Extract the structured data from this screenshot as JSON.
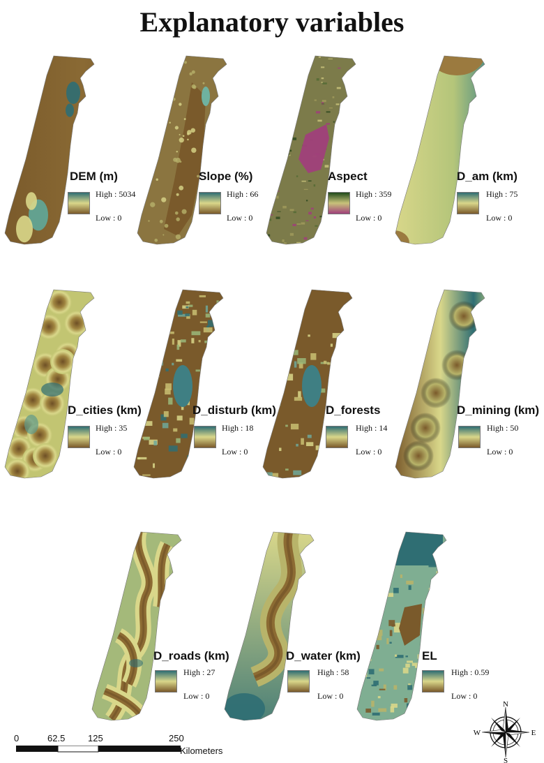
{
  "title": "Explanatory variables",
  "colors": {
    "ramp_high": "#2f6e73",
    "ramp_mid": "#d9d78a",
    "ramp_low": "#7a5a2b",
    "aspect_high": "#1f4a1a",
    "aspect_mid": "#c8c27a",
    "aspect_low": "#a0407a"
  },
  "panels": [
    {
      "id": "dem",
      "title": "DEM (m)",
      "high_label": "High : 5034",
      "low_label": "Low : 0",
      "style": "dem",
      "colormap": "ramp"
    },
    {
      "id": "slope",
      "title": "Slope (%)",
      "high_label": "High : 66",
      "low_label": "Low : 0",
      "style": "slope",
      "colormap": "ramp"
    },
    {
      "id": "aspect",
      "title": "Aspect",
      "high_label": "High : 359",
      "low_label": "Low : 0",
      "style": "aspect",
      "colormap": "aspect"
    },
    {
      "id": "d_am",
      "title": "D_am (km)",
      "high_label": "High : 75",
      "low_label": "Low : 0",
      "style": "dist",
      "colormap": "ramp"
    },
    {
      "id": "d_cities",
      "title": "D_cities (km)",
      "high_label": "High : 35",
      "low_label": "Low : 0",
      "style": "blobs",
      "colormap": "ramp"
    },
    {
      "id": "d_disturb",
      "title": "D_disturb (km)",
      "high_label": "High : 18",
      "low_label": "Low : 0",
      "style": "patchy",
      "colormap": "ramp"
    },
    {
      "id": "d_forests",
      "title": "D_forests",
      "high_label": "High : 14",
      "low_label": "Low : 0",
      "style": "patchy2",
      "colormap": "ramp"
    },
    {
      "id": "d_mining",
      "title": "D_mining (km)",
      "high_label": "High : 50",
      "low_label": "Low : 0",
      "style": "dist2",
      "colormap": "ramp"
    },
    {
      "id": "d_roads",
      "title": "D_roads (km)",
      "high_label": "High : 27",
      "low_label": "Low : 0",
      "style": "roads",
      "colormap": "ramp"
    },
    {
      "id": "d_water",
      "title": "D_water (km)",
      "high_label": "High : 58",
      "low_label": "Low : 0",
      "style": "water",
      "colormap": "ramp"
    },
    {
      "id": "el",
      "title": "EL",
      "high_label": "High : 0.59",
      "low_label": "Low : 0",
      "style": "el",
      "colormap": "ramp"
    }
  ],
  "scale_bar": {
    "ticks": [
      "0",
      "62.5",
      "125",
      "250"
    ],
    "unit": "Kilometers"
  },
  "north_arrow": {
    "n": "N",
    "s": "S",
    "e": "E",
    "w": "W"
  }
}
